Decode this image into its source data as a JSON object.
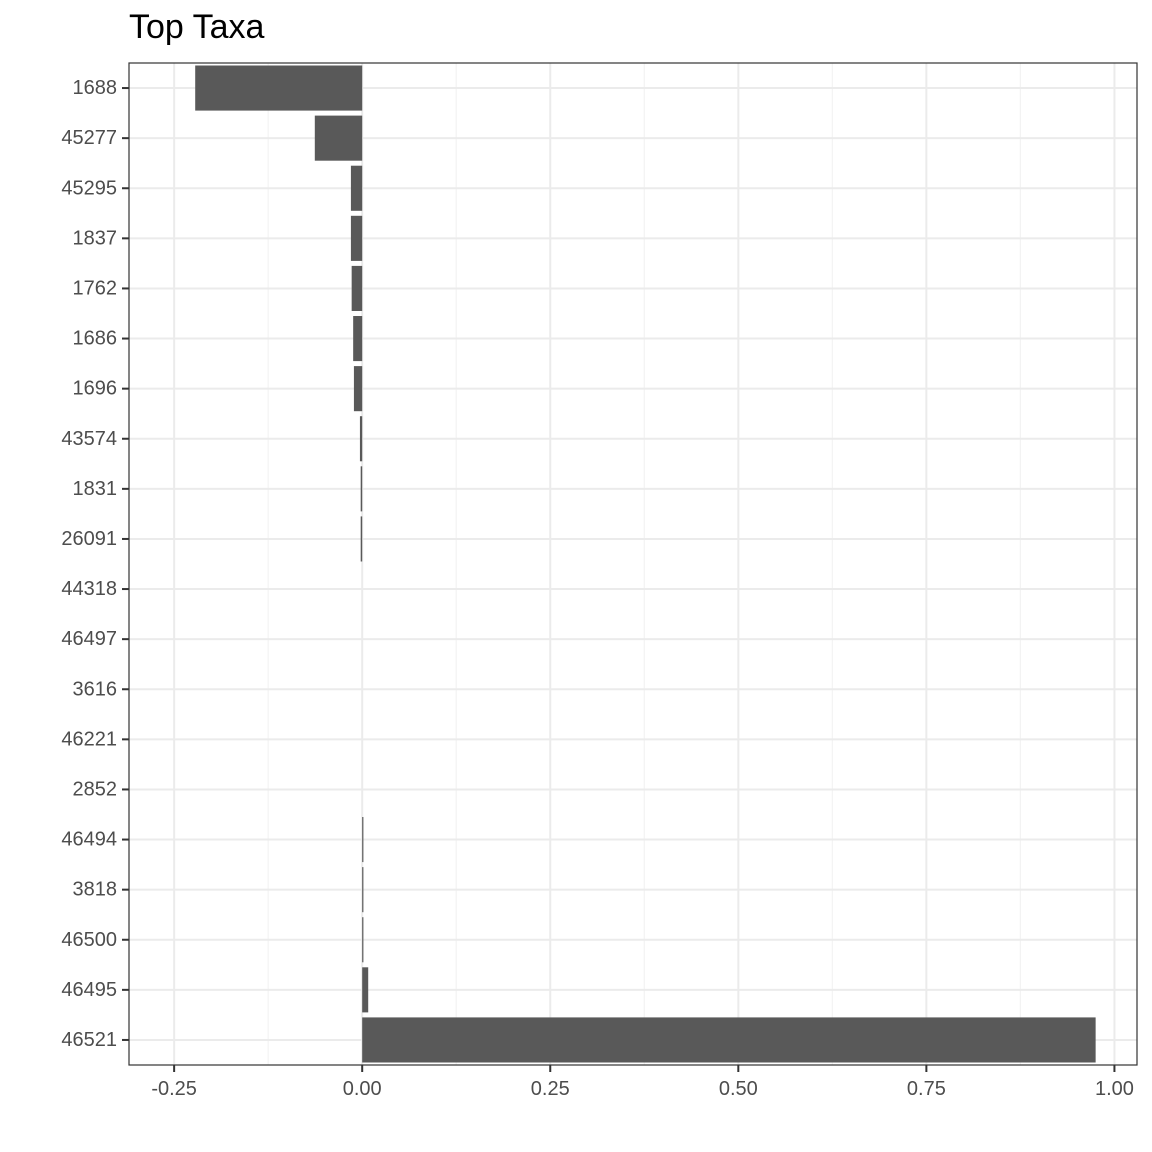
{
  "chart_data": {
    "type": "bar",
    "orientation": "horizontal",
    "title": "Top Taxa",
    "xlabel": "",
    "ylabel": "",
    "categories": [
      "1688",
      "45277",
      "45295",
      "1837",
      "1762",
      "1686",
      "1696",
      "43574",
      "1831",
      "26091",
      "44318",
      "46497",
      "3616",
      "46221",
      "2852",
      "46494",
      "3818",
      "46500",
      "46495",
      "46521"
    ],
    "values": [
      -0.222,
      -0.063,
      -0.015,
      -0.015,
      -0.014,
      -0.012,
      -0.011,
      -0.003,
      -0.002,
      -0.002,
      0.0,
      0.0,
      0.0,
      0.0,
      0.0,
      0.001,
      0.001,
      0.001,
      0.008,
      0.975
    ],
    "xlim": [
      -0.31,
      1.03
    ],
    "xticks": [
      -0.25,
      0.0,
      0.25,
      0.5,
      0.75,
      1.0
    ],
    "xtick_labels": [
      "-0.25",
      "0.00",
      "0.25",
      "0.50",
      "0.75",
      "1.00"
    ],
    "grid": true,
    "legend": "none",
    "colors": {
      "bar": "#595959",
      "grid_major": "#ebebeb",
      "grid_minor": "#f3f3f3",
      "panel_border": "#333333",
      "tick_text": "#4d4d4d"
    }
  }
}
